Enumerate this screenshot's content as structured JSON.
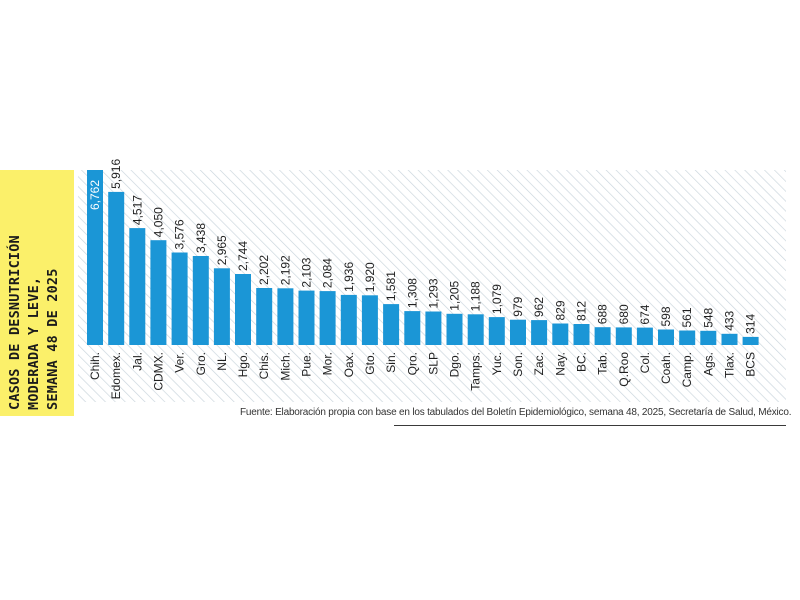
{
  "chart_data": {
    "type": "bar",
    "ylabel_lines": [
      "CASOS DE DESNUTRICIÓN",
      "MODERADA Y LEVE,",
      "SEMANA 48 DE 2025"
    ],
    "categories": [
      "Chih.",
      "Edomex.",
      "Jal.",
      "CDMX.",
      "Ver.",
      "Gro.",
      "NL.",
      "Hgo.",
      "Chis.",
      "Mich.",
      "Pue.",
      "Mor.",
      "Oax.",
      "Gto.",
      "Sin.",
      "Qro.",
      "SLP",
      "Dgo.",
      "Tamps.",
      "Yuc.",
      "Son.",
      "Zac.",
      "Nay.",
      "BC.",
      "Tab.",
      "Q.Roo",
      "Col.",
      "Coah.",
      "Camp.",
      "Ags.",
      "Tlax.",
      "BCS"
    ],
    "values": [
      6762,
      5916,
      4517,
      4050,
      3576,
      3438,
      2965,
      2744,
      2202,
      2192,
      2103,
      2084,
      1936,
      1920,
      1581,
      1308,
      1293,
      1205,
      1188,
      1079,
      979,
      962,
      829,
      812,
      688,
      680,
      674,
      598,
      561,
      548,
      433,
      314
    ],
    "value_labels": [
      "6,762",
      "5,916",
      "4,517",
      "4,050",
      "3,576",
      "3,438",
      "2,965",
      "2,744",
      "2,202",
      "2,192",
      "2,103",
      "2,084",
      "1,936",
      "1,920",
      "1,581",
      "1,308",
      "1,293",
      "1,205",
      "1,188",
      "1,079",
      "979",
      "962",
      "829",
      "812",
      "688",
      "680",
      "674",
      "598",
      "561",
      "548",
      "433",
      "314"
    ],
    "bar_color": "#1b96d6",
    "background_pattern": "diagonal-stripes",
    "label_orientation": "vertical",
    "source": "Fuente: Elaboración propia con base en los tabulados del Boletín Epidemiológico, semana 48, 2025, Secretaría de Salud, México."
  },
  "colors": {
    "accent_yellow": "#fbf06a",
    "bar": "#1b96d6",
    "stripe": "#c9d4dc"
  }
}
